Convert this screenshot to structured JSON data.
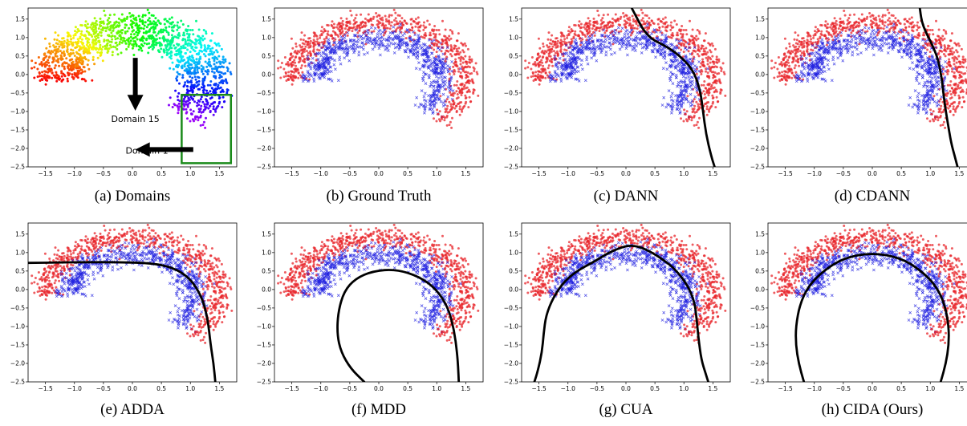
{
  "colors": {
    "class_a": "#e8262b",
    "class_b": "#2020e0",
    "boundary": "#000000",
    "target_box": "#1a8a1a",
    "axes": "#000000"
  },
  "chart_data": [
    {
      "type": "scatter",
      "caption": "(a) Domains",
      "coloring": "domain-index-rainbow",
      "xlim": [
        -1.8,
        1.8
      ],
      "ylim": [
        -2.5,
        1.8
      ],
      "xticks": [
        -1.5,
        -1.0,
        -0.5,
        0.0,
        0.5,
        1.0,
        1.5
      ],
      "yticks": [
        1.5,
        1.0,
        0.5,
        0.0,
        -0.5,
        -1.0,
        -1.5,
        -2.0,
        -2.5
      ],
      "annotations": [
        {
          "text": "Domain 15",
          "x": 0.05,
          "y": -1.2
        },
        {
          "text": "Domain 1",
          "x": 0.25,
          "y": -2.05
        }
      ],
      "target_box": {
        "x": [
          0.85,
          1.7
        ],
        "y": [
          -2.4,
          -0.55
        ]
      }
    },
    {
      "type": "scatter",
      "caption": "(b) Ground Truth",
      "xlim": [
        -1.8,
        1.8
      ],
      "ylim": [
        -2.5,
        1.8
      ],
      "xticks": [
        -1.5,
        -1.0,
        -0.5,
        0.0,
        0.5,
        1.0,
        1.5
      ],
      "yticks": [
        1.5,
        1.0,
        0.5,
        0.0,
        -0.5,
        -1.0,
        -1.5,
        -2.0,
        -2.5
      ],
      "boundary": []
    },
    {
      "type": "scatter",
      "caption": "(c) DANN",
      "xlim": [
        -1.8,
        1.8
      ],
      "ylim": [
        -2.5,
        1.8
      ],
      "xticks": [
        -1.5,
        -1.0,
        -0.5,
        0.0,
        0.5,
        1.0,
        1.5
      ],
      "yticks": [
        1.5,
        1.0,
        0.5,
        0.0,
        -0.5,
        -1.0,
        -1.5,
        -2.0,
        -2.5
      ],
      "boundary": [
        [
          0.1,
          1.8
        ],
        [
          0.2,
          1.5
        ],
        [
          0.3,
          1.2
        ],
        [
          0.45,
          0.95
        ],
        [
          0.65,
          0.8
        ],
        [
          0.9,
          0.55
        ],
        [
          1.15,
          0.15
        ],
        [
          1.28,
          -0.4
        ],
        [
          1.33,
          -1.0
        ],
        [
          1.38,
          -1.6
        ],
        [
          1.47,
          -2.2
        ],
        [
          1.53,
          -2.5
        ]
      ]
    },
    {
      "type": "scatter",
      "caption": "(d) CDANN",
      "xlim": [
        -1.8,
        1.8
      ],
      "ylim": [
        -2.5,
        1.8
      ],
      "xticks": [
        -1.5,
        -1.0,
        -0.5,
        0.0,
        0.5,
        1.0,
        1.5
      ],
      "yticks": [
        1.5,
        1.0,
        0.5,
        0.0,
        -0.5,
        -1.0,
        -1.5,
        -2.0,
        -2.5
      ],
      "boundary": [
        [
          0.82,
          1.8
        ],
        [
          0.85,
          1.45
        ],
        [
          0.92,
          1.15
        ],
        [
          1.02,
          0.85
        ],
        [
          1.13,
          0.45
        ],
        [
          1.2,
          -0.1
        ],
        [
          1.24,
          -0.7
        ],
        [
          1.3,
          -1.3
        ],
        [
          1.36,
          -1.85
        ],
        [
          1.42,
          -2.2
        ],
        [
          1.47,
          -2.5
        ]
      ]
    },
    {
      "type": "scatter",
      "caption": "(e) ADDA",
      "xlim": [
        -1.8,
        1.8
      ],
      "ylim": [
        -2.5,
        1.8
      ],
      "xticks": [
        -1.5,
        -1.0,
        -0.5,
        0.0,
        0.5,
        1.0,
        1.5
      ],
      "yticks": [
        1.5,
        1.0,
        0.5,
        0.0,
        -0.5,
        -1.0,
        -1.5,
        -2.0,
        -2.5
      ],
      "boundary": [
        [
          -1.8,
          0.72
        ],
        [
          -1.3,
          0.73
        ],
        [
          -0.9,
          0.74
        ],
        [
          -0.3,
          0.74
        ],
        [
          0.3,
          0.72
        ],
        [
          0.7,
          0.6
        ],
        [
          1.0,
          0.3
        ],
        [
          1.2,
          -0.2
        ],
        [
          1.3,
          -0.8
        ],
        [
          1.35,
          -1.5
        ],
        [
          1.4,
          -2.0
        ],
        [
          1.43,
          -2.5
        ]
      ]
    },
    {
      "type": "scatter",
      "caption": "(f) MDD",
      "xlim": [
        -1.8,
        1.8
      ],
      "ylim": [
        -2.5,
        1.8
      ],
      "xticks": [
        -1.5,
        -1.0,
        -0.5,
        0.0,
        0.5,
        1.0,
        1.5
      ],
      "yticks": [
        1.5,
        1.0,
        0.5,
        0.0,
        -0.5,
        -1.0,
        -1.5,
        -2.0,
        -2.5
      ],
      "boundary": [
        [
          -0.25,
          -2.5
        ],
        [
          -0.48,
          -2.15
        ],
        [
          -0.65,
          -1.7
        ],
        [
          -0.72,
          -1.2
        ],
        [
          -0.7,
          -0.6
        ],
        [
          -0.6,
          -0.05
        ],
        [
          -0.4,
          0.3
        ],
        [
          -0.1,
          0.5
        ],
        [
          0.3,
          0.55
        ],
        [
          0.7,
          0.35
        ],
        [
          1.0,
          0.0
        ],
        [
          1.2,
          -0.5
        ],
        [
          1.3,
          -1.1
        ],
        [
          1.35,
          -1.7
        ],
        [
          1.37,
          -2.1
        ],
        [
          1.38,
          -2.5
        ]
      ]
    },
    {
      "type": "scatter",
      "caption": "(g) CUA",
      "xlim": [
        -1.8,
        1.8
      ],
      "ylim": [
        -2.5,
        1.8
      ],
      "xticks": [
        -1.5,
        -1.0,
        -0.5,
        0.0,
        0.5,
        1.0,
        1.5
      ],
      "yticks": [
        1.5,
        1.0,
        0.5,
        0.0,
        -0.5,
        -1.0,
        -1.5,
        -2.0,
        -2.5
      ],
      "boundary": [
        [
          -1.58,
          -2.5
        ],
        [
          -1.52,
          -2.2
        ],
        [
          -1.45,
          -1.7
        ],
        [
          -1.42,
          -1.2
        ],
        [
          -1.38,
          -0.7
        ],
        [
          -1.25,
          -0.2
        ],
        [
          -1.05,
          0.25
        ],
        [
          -0.8,
          0.55
        ],
        [
          -0.55,
          0.75
        ],
        [
          -0.35,
          0.95
        ],
        [
          -0.15,
          1.1
        ],
        [
          0.05,
          1.2
        ],
        [
          0.25,
          1.15
        ],
        [
          0.45,
          1.0
        ],
        [
          0.65,
          0.8
        ],
        [
          0.85,
          0.55
        ],
        [
          1.05,
          0.15
        ],
        [
          1.18,
          -0.3
        ],
        [
          1.22,
          -0.8
        ],
        [
          1.25,
          -1.3
        ],
        [
          1.3,
          -1.9
        ],
        [
          1.38,
          -2.3
        ],
        [
          1.42,
          -2.5
        ]
      ]
    },
    {
      "type": "scatter",
      "caption": "(h) CIDA (Ours)",
      "xlim": [
        -1.8,
        1.8
      ],
      "ylim": [
        -2.5,
        1.8
      ],
      "xticks": [
        -1.5,
        -1.0,
        -0.5,
        0.0,
        0.5,
        1.0,
        1.5
      ],
      "yticks": [
        1.5,
        1.0,
        0.5,
        0.0,
        -0.5,
        -1.0,
        -1.5,
        -2.0,
        -2.5
      ],
      "boundary": [
        [
          -1.18,
          -2.5
        ],
        [
          -1.27,
          -2.0
        ],
        [
          -1.32,
          -1.5
        ],
        [
          -1.32,
          -1.0
        ],
        [
          -1.25,
          -0.4
        ],
        [
          -1.1,
          0.1
        ],
        [
          -0.85,
          0.5
        ],
        [
          -0.5,
          0.85
        ],
        [
          0.0,
          1.0
        ],
        [
          0.5,
          0.85
        ],
        [
          0.85,
          0.5
        ],
        [
          1.1,
          0.1
        ],
        [
          1.25,
          -0.4
        ],
        [
          1.32,
          -1.0
        ],
        [
          1.32,
          -1.5
        ],
        [
          1.27,
          -2.0
        ],
        [
          1.18,
          -2.5
        ]
      ]
    }
  ]
}
